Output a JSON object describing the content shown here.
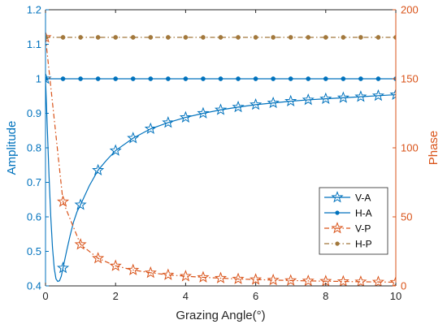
{
  "chart_data": {
    "type": "line",
    "xlabel": "Grazing Angle(°)",
    "ylabel_left": "Amplitude",
    "ylabel_right": "Phase",
    "xlim": [
      0,
      10
    ],
    "ylim_left": [
      0.4,
      1.2
    ],
    "ylim_right": [
      0,
      200
    ],
    "x_ticks": [
      "0",
      "2",
      "4",
      "6",
      "8",
      "10"
    ],
    "y_ticks_left": [
      "0.4",
      "0.5",
      "0.6",
      "0.7",
      "0.8",
      "0.9",
      "1",
      "1.1",
      "1.2"
    ],
    "y_ticks_right": [
      "0",
      "50",
      "100",
      "150",
      "200"
    ],
    "grid": false,
    "legend_position": "right",
    "colors": {
      "left_axis": "#0072BD",
      "right_axis": "#D95319",
      "va": "#0072BD",
      "ha": "#0072BD",
      "vp": "#D95319",
      "hp": "#A2783C"
    },
    "series": [
      {
        "name": "V-A",
        "axis": "left",
        "style": "solid",
        "marker": "star-open",
        "marker_x": [
          0,
          0.5,
          1,
          1.5,
          2,
          2.5,
          3,
          3.5,
          4,
          4.5,
          5,
          5.5,
          6,
          6.5,
          7,
          7.5,
          8,
          8.5,
          9,
          9.5,
          10
        ],
        "x": [
          0,
          0.05,
          0.1,
          0.15,
          0.2,
          0.25,
          0.3,
          0.35,
          0.4,
          0.45,
          0.5,
          0.6,
          0.7,
          0.8,
          0.9,
          1,
          1.25,
          1.5,
          1.75,
          2,
          2.5,
          3,
          3.5,
          4,
          4.5,
          5,
          5.5,
          6,
          6.5,
          7,
          7.5,
          8,
          8.5,
          9,
          9.5,
          10
        ],
        "y": [
          1.0,
          0.86,
          0.72,
          0.6,
          0.51,
          0.45,
          0.42,
          0.413,
          0.415,
          0.428,
          0.452,
          0.5,
          0.545,
          0.585,
          0.615,
          0.635,
          0.69,
          0.735,
          0.765,
          0.792,
          0.828,
          0.855,
          0.873,
          0.888,
          0.9,
          0.91,
          0.918,
          0.925,
          0.93,
          0.935,
          0.939,
          0.942,
          0.945,
          0.948,
          0.951,
          0.954
        ]
      },
      {
        "name": "H-A",
        "axis": "left",
        "style": "solid",
        "marker": "dot",
        "x": [
          0,
          0.5,
          1,
          1.5,
          2,
          2.5,
          3,
          3.5,
          4,
          4.5,
          5,
          5.5,
          6,
          6.5,
          7,
          7.5,
          8,
          8.5,
          9,
          9.5,
          10
        ],
        "y": [
          1,
          1,
          1,
          1,
          1,
          1,
          1,
          1,
          1,
          1,
          1,
          1,
          1,
          1,
          1,
          1,
          1,
          1,
          1,
          1,
          1
        ]
      },
      {
        "name": "V-P",
        "axis": "right",
        "style": "dashdot",
        "marker": "star-open",
        "x": [
          0,
          0.5,
          1,
          1.5,
          2,
          2.5,
          3,
          3.5,
          4,
          4.5,
          5,
          5.5,
          6,
          6.5,
          7,
          7.5,
          8,
          8.5,
          9,
          9.5,
          10
        ],
        "y": [
          180,
          61,
          30,
          20,
          14.5,
          11.5,
          9.5,
          8,
          7,
          6.2,
          5.6,
          5,
          4.6,
          4.2,
          3.9,
          3.6,
          3.4,
          3.2,
          3.0,
          2.85,
          2.7
        ]
      },
      {
        "name": "H-P",
        "axis": "right",
        "style": "dashdot",
        "marker": "dot",
        "x": [
          0,
          0.5,
          1,
          1.5,
          2,
          2.5,
          3,
          3.5,
          4,
          4.5,
          5,
          5.5,
          6,
          6.5,
          7,
          7.5,
          8,
          8.5,
          9,
          9.5,
          10
        ],
        "y": [
          180,
          180,
          180,
          180,
          180,
          180,
          180,
          180,
          180,
          180,
          180,
          180,
          180,
          180,
          180,
          180,
          180,
          180,
          180,
          180,
          180
        ]
      }
    ]
  }
}
